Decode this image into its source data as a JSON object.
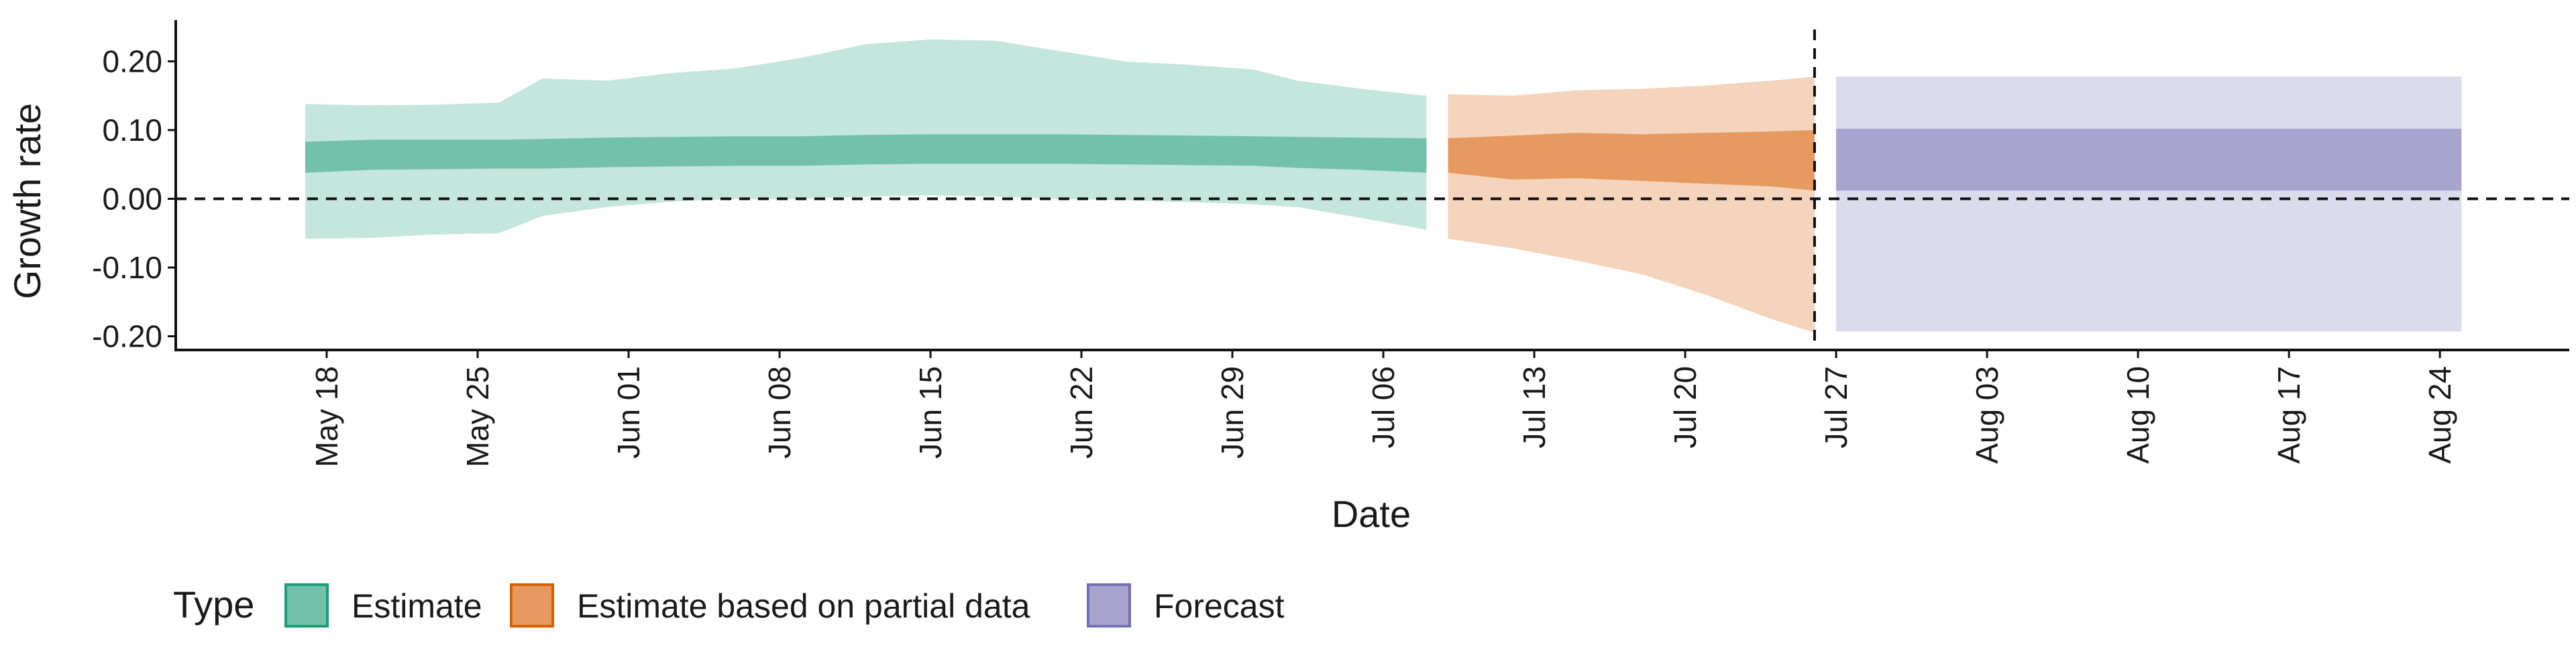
{
  "chart_data": {
    "type": "area",
    "xlabel": "Date",
    "ylabel": "Growth rate",
    "ylim": [
      -0.22,
      0.26
    ],
    "y_ticks": [
      -0.2,
      -0.1,
      0.0,
      0.1,
      0.2
    ],
    "y_tick_labels": [
      "-0.20",
      "-0.10",
      "0.00",
      "0.10",
      "0.20"
    ],
    "x_range": [
      "2020-05-11",
      "2020-08-30"
    ],
    "x_tick_dates": [
      "2020-05-18",
      "2020-05-25",
      "2020-06-01",
      "2020-06-08",
      "2020-06-15",
      "2020-06-22",
      "2020-06-29",
      "2020-07-06",
      "2020-07-13",
      "2020-07-20",
      "2020-07-27",
      "2020-08-03",
      "2020-08-10",
      "2020-08-17",
      "2020-08-24"
    ],
    "x_tick_labels": [
      "May 18",
      "May 25",
      "Jun 01",
      "Jun 08",
      "Jun 15",
      "Jun 22",
      "Jun 29",
      "Jul 06",
      "Jul 13",
      "Jul 20",
      "Jul 27",
      "Aug 03",
      "Aug 10",
      "Aug 17",
      "Aug 24"
    ],
    "reference_lines": {
      "horizontal_y": 0.0,
      "vertical_date": "2020-07-26"
    },
    "legend": {
      "title": "Type",
      "position": "bottom-left",
      "items": [
        {
          "label": "Estimate",
          "color": "#73c1a8",
          "border": "#1b9e77"
        },
        {
          "label": "Estimate based on partial data",
          "color": "#e69a5f",
          "border": "#d95f02"
        },
        {
          "label": "Forecast",
          "color": "#a8a4cf",
          "border": "#7570b3"
        }
      ]
    },
    "series": [
      {
        "name": "Estimate",
        "outer_color": "#c5e6dc",
        "inner_color": "#73c1a8",
        "points": [
          {
            "date": "2020-05-17",
            "lo90": -0.058,
            "hi90": 0.138,
            "lo50": 0.038,
            "hi50": 0.083
          },
          {
            "date": "2020-05-20",
            "lo90": -0.057,
            "hi90": 0.136,
            "lo50": 0.042,
            "hi50": 0.086
          },
          {
            "date": "2020-05-23",
            "lo90": -0.052,
            "hi90": 0.137,
            "lo50": 0.043,
            "hi50": 0.086
          },
          {
            "date": "2020-05-26",
            "lo90": -0.05,
            "hi90": 0.14,
            "lo50": 0.044,
            "hi50": 0.086
          },
          {
            "date": "2020-05-28",
            "lo90": -0.025,
            "hi90": 0.175,
            "lo50": 0.044,
            "hi50": 0.087
          },
          {
            "date": "2020-05-31",
            "lo90": -0.012,
            "hi90": 0.172,
            "lo50": 0.046,
            "hi50": 0.089
          },
          {
            "date": "2020-06-03",
            "lo90": -0.004,
            "hi90": 0.183,
            "lo50": 0.047,
            "hi50": 0.09
          },
          {
            "date": "2020-06-06",
            "lo90": 0.0,
            "hi90": 0.19,
            "lo50": 0.048,
            "hi50": 0.091
          },
          {
            "date": "2020-06-09",
            "lo90": 0.0,
            "hi90": 0.205,
            "lo50": 0.048,
            "hi50": 0.091
          },
          {
            "date": "2020-06-12",
            "lo90": 0.003,
            "hi90": 0.225,
            "lo50": 0.05,
            "hi50": 0.093
          },
          {
            "date": "2020-06-15",
            "lo90": 0.005,
            "hi90": 0.232,
            "lo50": 0.051,
            "hi50": 0.094
          },
          {
            "date": "2020-06-18",
            "lo90": 0.003,
            "hi90": 0.23,
            "lo50": 0.051,
            "hi50": 0.094
          },
          {
            "date": "2020-06-21",
            "lo90": 0.0,
            "hi90": 0.215,
            "lo50": 0.051,
            "hi50": 0.094
          },
          {
            "date": "2020-06-24",
            "lo90": -0.002,
            "hi90": 0.2,
            "lo50": 0.05,
            "hi50": 0.093
          },
          {
            "date": "2020-06-27",
            "lo90": -0.005,
            "hi90": 0.195,
            "lo50": 0.049,
            "hi50": 0.092
          },
          {
            "date": "2020-06-30",
            "lo90": -0.008,
            "hi90": 0.188,
            "lo50": 0.048,
            "hi50": 0.091
          },
          {
            "date": "2020-07-02",
            "lo90": -0.012,
            "hi90": 0.172,
            "lo50": 0.045,
            "hi50": 0.09
          },
          {
            "date": "2020-07-05",
            "lo90": -0.028,
            "hi90": 0.16,
            "lo50": 0.042,
            "hi50": 0.089
          },
          {
            "date": "2020-07-08",
            "lo90": -0.045,
            "hi90": 0.15,
            "lo50": 0.038,
            "hi50": 0.088
          }
        ]
      },
      {
        "name": "Estimate based on partial data",
        "outer_color": "#f4d4bc",
        "inner_color": "#e69a5f",
        "points": [
          {
            "date": "2020-07-09",
            "lo90": -0.058,
            "hi90": 0.152,
            "lo50": 0.038,
            "hi50": 0.088
          },
          {
            "date": "2020-07-12",
            "lo90": -0.072,
            "hi90": 0.15,
            "lo50": 0.028,
            "hi50": 0.092
          },
          {
            "date": "2020-07-15",
            "lo90": -0.09,
            "hi90": 0.158,
            "lo50": 0.03,
            "hi50": 0.096
          },
          {
            "date": "2020-07-18",
            "lo90": -0.11,
            "hi90": 0.16,
            "lo50": 0.026,
            "hi50": 0.094
          },
          {
            "date": "2020-07-21",
            "lo90": -0.14,
            "hi90": 0.165,
            "lo50": 0.022,
            "hi50": 0.096
          },
          {
            "date": "2020-07-24",
            "lo90": -0.175,
            "hi90": 0.172,
            "lo50": 0.018,
            "hi50": 0.098
          },
          {
            "date": "2020-07-26",
            "lo90": -0.195,
            "hi90": 0.178,
            "lo50": 0.012,
            "hi50": 0.1
          }
        ]
      },
      {
        "name": "Forecast",
        "outer_color": "#dcdbeb",
        "inner_color": "#a8a4cf",
        "points": [
          {
            "date": "2020-07-27",
            "lo90": -0.193,
            "hi90": 0.178,
            "lo50": 0.012,
            "hi50": 0.102
          },
          {
            "date": "2020-08-25",
            "lo90": -0.193,
            "hi90": 0.178,
            "lo50": 0.012,
            "hi50": 0.102
          }
        ]
      }
    ]
  }
}
